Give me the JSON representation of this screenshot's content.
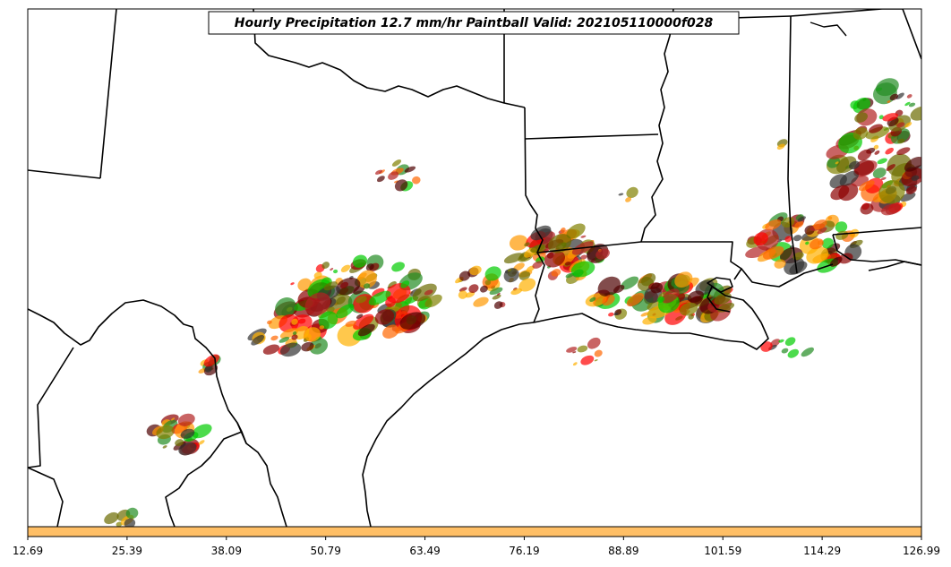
{
  "title": "Hourly Precipitation 12.7 mm/hr Paintball Valid: 202105110000f028",
  "colorbar": {
    "color": "#ffbf66",
    "ticks": [
      "12.69",
      "25.39",
      "38.09",
      "50.79",
      "63.49",
      "76.19",
      "88.89",
      "101.59",
      "114.29",
      "126.99"
    ]
  },
  "member_colors": [
    "#ff0000",
    "#00cc00",
    "#ff9900",
    "#b22222",
    "#6b6b00",
    "#4d0000",
    "#333333",
    "#ff6600",
    "#8b0000",
    "#228b22",
    "#ffb000",
    "#808000"
  ]
}
